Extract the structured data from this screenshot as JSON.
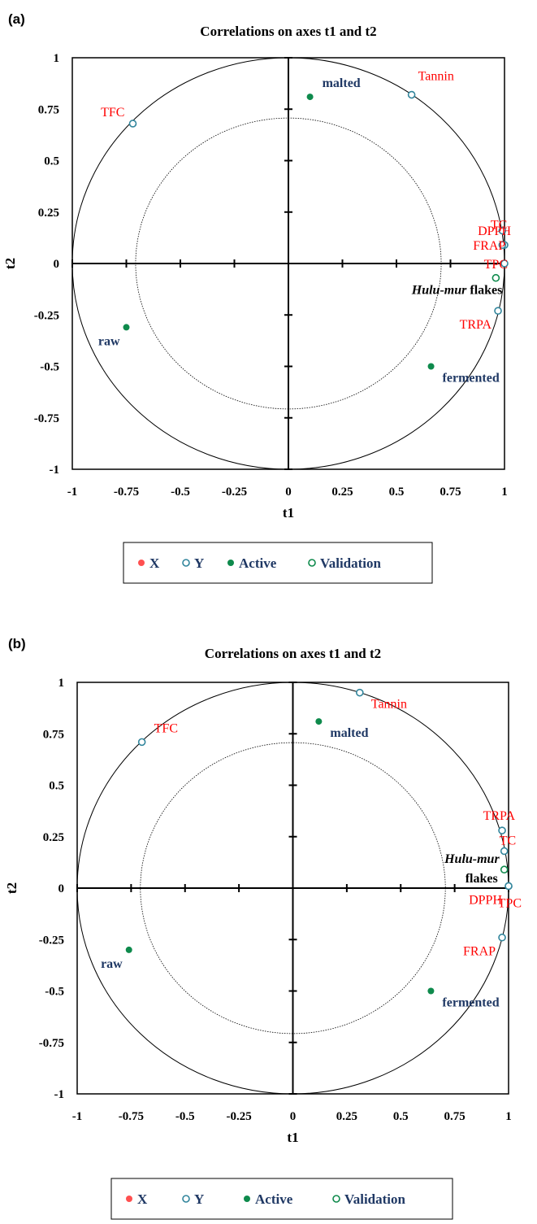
{
  "chart_data": [
    {
      "type": "scatter",
      "panel": "(a)",
      "title": "Correlations on axes t1 and t2",
      "xlabel": "t1",
      "ylabel": "t2",
      "xlim": [
        -1,
        1
      ],
      "ylim": [
        -1,
        1
      ],
      "xticks": [
        "-1",
        "-0.75",
        "-0.5",
        "-0.25",
        "0",
        "0.25",
        "0.5",
        "0.75",
        "1"
      ],
      "yticks": [
        "1",
        "0.75",
        "0.5",
        "0.25",
        "0",
        "-0.25",
        "-0.5",
        "-0.75",
        "-1"
      ],
      "circles": [
        1.0,
        0.707
      ],
      "grid": false,
      "legend_position": "bottom",
      "legend": [
        {
          "label": "X",
          "marker": "filled",
          "color": "#ff5050"
        },
        {
          "label": "Y",
          "marker": "open",
          "color": "#31859c"
        },
        {
          "label": "Active",
          "marker": "filled",
          "color": "#0e8a4c"
        },
        {
          "label": "Validation",
          "marker": "open",
          "color": "#0e8a4c"
        }
      ],
      "series": [
        {
          "name": "Y",
          "points": [
            {
              "label": "TFC",
              "x": -0.72,
              "y": 0.68,
              "label_pos": "top-left"
            },
            {
              "label": "Tannin",
              "x": 0.57,
              "y": 0.82,
              "label_pos": "top-right"
            },
            {
              "label": "TC",
              "x": 0.99,
              "y": 0.16,
              "label_pos": "left-high"
            },
            {
              "label": "DPPH",
              "x": 1.0,
              "y": 0.09,
              "label_pos": "left-mid"
            },
            {
              "label": "FRAP",
              "x": 0.99,
              "y": 0.09,
              "label_pos": "left-low"
            },
            {
              "label": "TPC",
              "x": 1.0,
              "y": 0.0,
              "label_pos": "left-low"
            },
            {
              "label": "TRPA",
              "x": 0.97,
              "y": -0.23,
              "label_pos": "below-left"
            }
          ]
        },
        {
          "name": "Active",
          "points": [
            {
              "label": "malted",
              "x": 0.1,
              "y": 0.81,
              "label_pos": "right"
            },
            {
              "label": "raw",
              "x": -0.75,
              "y": -0.31,
              "label_pos": "below-left"
            },
            {
              "label": "fermented",
              "x": 0.66,
              "y": -0.5,
              "label_pos": "below-right"
            }
          ]
        },
        {
          "name": "Validation",
          "points": [
            {
              "label_italic": "Hulu-mur",
              "label_rest": " flakes",
              "x": 0.96,
              "y": -0.07,
              "label_pos": "below-left"
            }
          ]
        }
      ]
    },
    {
      "type": "scatter",
      "panel": "(b)",
      "title": "Correlations on axes t1 and t2",
      "xlabel": "t1",
      "ylabel": "t2",
      "xlim": [
        -1,
        1
      ],
      "ylim": [
        -1,
        1
      ],
      "xticks": [
        "-1",
        "-0.75",
        "-0.5",
        "-0.25",
        "0",
        "0.25",
        "0.5",
        "0.75",
        "1"
      ],
      "yticks": [
        "1",
        "0.75",
        "0.5",
        "0.25",
        "0",
        "-0.25",
        "-0.5",
        "-0.75",
        "-1"
      ],
      "circles": [
        1.0,
        0.707
      ],
      "grid": false,
      "legend_position": "bottom",
      "legend": [
        {
          "label": "X",
          "marker": "filled",
          "color": "#ff5050"
        },
        {
          "label": "Y",
          "marker": "open",
          "color": "#31859c"
        },
        {
          "label": "Active",
          "marker": "filled",
          "color": "#0e8a4c"
        },
        {
          "label": "Validation",
          "marker": "open",
          "color": "#0e8a4c"
        }
      ],
      "series": [
        {
          "name": "Y",
          "points": [
            {
              "label": "TFC",
              "x": -0.7,
              "y": 0.71,
              "label_pos": "right"
            },
            {
              "label": "Tannin",
              "x": 0.31,
              "y": 0.95,
              "label_pos": "below-right"
            },
            {
              "label": "TRPA",
              "x": 0.97,
              "y": 0.28,
              "label_pos": "above-left"
            },
            {
              "label": "TC",
              "x": 0.98,
              "y": 0.18,
              "label_pos": "above-right"
            },
            {
              "label": "DPPH",
              "x": 1.0,
              "y": 0.01,
              "label_pos": "below-left"
            },
            {
              "label": "TPC",
              "x": 1.0,
              "y": 0.01,
              "label_pos": "below-left2"
            },
            {
              "label": "FRAP",
              "x": 0.97,
              "y": -0.24,
              "label_pos": "below-left"
            }
          ]
        },
        {
          "name": "Active",
          "points": [
            {
              "label": "malted",
              "x": 0.12,
              "y": 0.81,
              "label_pos": "below-right"
            },
            {
              "label": "raw",
              "x": -0.76,
              "y": -0.3,
              "label_pos": "below-left"
            },
            {
              "label": "fermented",
              "x": 0.64,
              "y": -0.5,
              "label_pos": "below-right"
            }
          ]
        },
        {
          "name": "Validation",
          "points": [
            {
              "label_italic": "Hulu-mur",
              "label_rest": " flakes",
              "x": 0.98,
              "y": 0.09,
              "label_pos": "left-split"
            }
          ]
        }
      ]
    }
  ]
}
